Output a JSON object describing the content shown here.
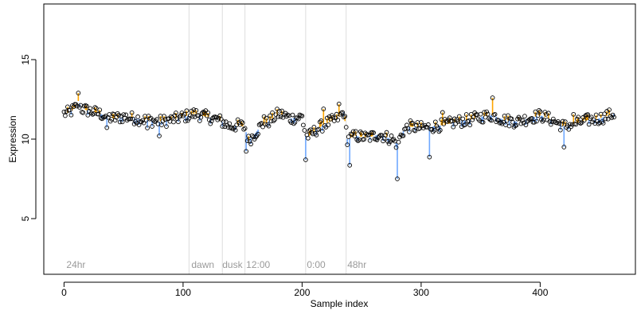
{
  "chart_data": {
    "type": "scatter",
    "xlabel": "Sample index",
    "ylabel": "Expression",
    "xlim": [
      -17,
      480
    ],
    "ylim": [
      1.5,
      18.5
    ],
    "x_ticks": [
      0,
      100,
      200,
      300,
      400
    ],
    "y_ticks": [
      5,
      10,
      15
    ],
    "grid": false,
    "baseline_color": "#ffa500",
    "above_color": "#ffa500",
    "below_color": "#6fa8ff",
    "phase_lines": [
      105,
      133,
      152,
      203,
      237
    ],
    "phase_labels": [
      {
        "text": "24hr",
        "x": 2
      },
      {
        "text": "dawn",
        "x": 107
      },
      {
        "text": "dusk",
        "x": 133
      },
      {
        "text": "12:00",
        "x": 153
      },
      {
        "text": "0:00",
        "x": 204
      },
      {
        "text": "48hr",
        "x": 238
      }
    ],
    "anchors": [
      [
        0,
        11.6
      ],
      [
        5,
        11.7
      ],
      [
        10,
        12.0
      ],
      [
        12,
        12.4
      ],
      [
        15,
        11.9
      ],
      [
        20,
        11.8
      ],
      [
        30,
        11.6
      ],
      [
        40,
        11.3
      ],
      [
        50,
        11.4
      ],
      [
        60,
        11.3
      ],
      [
        70,
        11.2
      ],
      [
        80,
        11.1
      ],
      [
        90,
        11.2
      ],
      [
        100,
        11.4
      ],
      [
        110,
        11.6
      ],
      [
        120,
        11.4
      ],
      [
        130,
        11.2
      ],
      [
        135,
        11.0
      ],
      [
        140,
        10.8
      ],
      [
        148,
        10.9
      ],
      [
        152,
        10.7
      ],
      [
        155,
        9.9
      ],
      [
        160,
        10.3
      ],
      [
        165,
        10.8
      ],
      [
        170,
        11.0
      ],
      [
        175,
        11.3
      ],
      [
        180,
        11.6
      ],
      [
        185,
        11.5
      ],
      [
        190,
        11.3
      ],
      [
        200,
        11.4
      ],
      [
        203,
        10.2
      ],
      [
        206,
        10.2
      ],
      [
        212,
        10.6
      ],
      [
        220,
        11.0
      ],
      [
        228,
        11.2
      ],
      [
        235,
        11.7
      ],
      [
        238,
        10.0
      ],
      [
        245,
        10.2
      ],
      [
        255,
        10.1
      ],
      [
        265,
        10.3
      ],
      [
        275,
        10.0
      ],
      [
        280,
        9.7
      ],
      [
        285,
        10.5
      ],
      [
        290,
        10.8
      ],
      [
        300,
        10.7
      ],
      [
        310,
        10.8
      ],
      [
        320,
        10.9
      ],
      [
        330,
        11.1
      ],
      [
        340,
        11.2
      ],
      [
        350,
        11.4
      ],
      [
        360,
        11.5
      ],
      [
        370,
        11.2
      ],
      [
        380,
        11.1
      ],
      [
        390,
        11.3
      ],
      [
        400,
        11.5
      ],
      [
        410,
        11.2
      ],
      [
        420,
        10.8
      ],
      [
        430,
        11.0
      ],
      [
        440,
        11.2
      ],
      [
        450,
        11.3
      ],
      [
        462,
        11.6
      ]
    ],
    "n_points": 463,
    "baseline_value": 11.2,
    "variation": [
      {
        "x": 12,
        "dy": 0.5
      },
      {
        "x": 36,
        "dy": -0.7
      },
      {
        "x": 70,
        "dy": -0.5
      },
      {
        "x": 80,
        "dy": -0.9
      },
      {
        "x": 153,
        "dy": -1.2
      },
      {
        "x": 168,
        "dy": 0.5
      },
      {
        "x": 203,
        "dy": -1.5
      },
      {
        "x": 218,
        "dy": 1.0
      },
      {
        "x": 231,
        "dy": 0.8
      },
      {
        "x": 240,
        "dy": -1.7
      },
      {
        "x": 280,
        "dy": -2.2
      },
      {
        "x": 307,
        "dy": -1.9
      },
      {
        "x": 318,
        "dy": 0.8
      },
      {
        "x": 360,
        "dy": 1.1
      },
      {
        "x": 420,
        "dy": -1.3
      },
      {
        "x": 428,
        "dy": 0.6
      }
    ]
  }
}
